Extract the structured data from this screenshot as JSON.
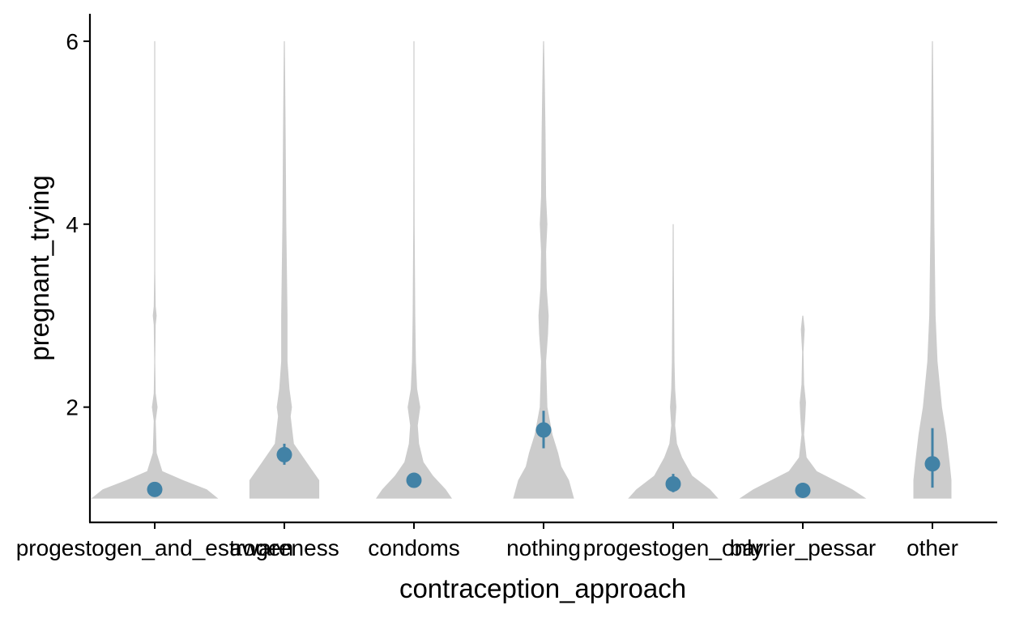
{
  "chart_data": {
    "type": "violin",
    "xlabel": "contraception_approach",
    "ylabel": "pregnant_trying",
    "categories": [
      "progestogen_and_estrogen",
      "awareness",
      "condoms",
      "nothing",
      "progestogen_only",
      "barrier_pessar",
      "other"
    ],
    "ylim": [
      0.74,
      6.3
    ],
    "yticks": [
      2,
      4,
      6
    ],
    "grid": false,
    "legend": "none",
    "colors": {
      "violin": "#cccccc",
      "point": "#4282a6",
      "axis": "#000000"
    },
    "summary": [
      {
        "category": "progestogen_and_estrogen",
        "mean": 1.1,
        "lower": 1.08,
        "upper": 1.12
      },
      {
        "category": "awareness",
        "mean": 1.48,
        "lower": 1.37,
        "upper": 1.6
      },
      {
        "category": "condoms",
        "mean": 1.2,
        "lower": 1.17,
        "upper": 1.23
      },
      {
        "category": "nothing",
        "mean": 1.75,
        "lower": 1.55,
        "upper": 1.96
      },
      {
        "category": "progestogen_only",
        "mean": 1.16,
        "lower": 1.07,
        "upper": 1.27
      },
      {
        "category": "barrier_pessar",
        "mean": 1.09,
        "lower": 1.03,
        "upper": 1.17
      },
      {
        "category": "other",
        "mean": 1.38,
        "lower": 1.12,
        "upper": 1.77
      }
    ],
    "density": [
      {
        "category": "progestogen_and_estrogen",
        "ymax": 6,
        "profile": [
          [
            1.0,
            1.0
          ],
          [
            1.1,
            0.82
          ],
          [
            1.2,
            0.45
          ],
          [
            1.3,
            0.12
          ],
          [
            1.5,
            0.03
          ],
          [
            1.85,
            0.015
          ],
          [
            2.0,
            0.045
          ],
          [
            2.15,
            0.015
          ],
          [
            2.5,
            0.006
          ],
          [
            2.9,
            0.015
          ],
          [
            3.0,
            0.03
          ],
          [
            3.1,
            0.015
          ],
          [
            3.5,
            0.004
          ],
          [
            4.0,
            0.003
          ],
          [
            5.0,
            0.002
          ],
          [
            6.0,
            0.0
          ]
        ]
      },
      {
        "category": "awareness",
        "ymax": 6,
        "profile": [
          [
            1.0,
            0.55
          ],
          [
            1.2,
            0.55
          ],
          [
            1.4,
            0.35
          ],
          [
            1.6,
            0.15
          ],
          [
            1.9,
            0.1
          ],
          [
            2.0,
            0.12
          ],
          [
            2.2,
            0.08
          ],
          [
            2.5,
            0.05
          ],
          [
            3.0,
            0.05
          ],
          [
            4.0,
            0.03
          ],
          [
            5.0,
            0.02
          ],
          [
            6.0,
            0.0
          ]
        ]
      },
      {
        "category": "condoms",
        "ymax": 6,
        "profile": [
          [
            1.0,
            0.6
          ],
          [
            1.1,
            0.5
          ],
          [
            1.25,
            0.3
          ],
          [
            1.4,
            0.15
          ],
          [
            1.6,
            0.08
          ],
          [
            1.8,
            0.06
          ],
          [
            2.0,
            0.1
          ],
          [
            2.2,
            0.05
          ],
          [
            2.5,
            0.03
          ],
          [
            3.0,
            0.02
          ],
          [
            3.5,
            0.015
          ],
          [
            4.0,
            0.01
          ],
          [
            5.0,
            0.005
          ],
          [
            6.0,
            0.0
          ]
        ]
      },
      {
        "category": "nothing",
        "ymax": 6,
        "profile": [
          [
            1.0,
            0.48
          ],
          [
            1.2,
            0.4
          ],
          [
            1.35,
            0.28
          ],
          [
            1.5,
            0.23
          ],
          [
            1.7,
            0.14
          ],
          [
            2.0,
            0.06
          ],
          [
            2.5,
            0.04
          ],
          [
            2.8,
            0.07
          ],
          [
            3.0,
            0.08
          ],
          [
            3.3,
            0.05
          ],
          [
            3.7,
            0.04
          ],
          [
            4.0,
            0.06
          ],
          [
            4.3,
            0.04
          ],
          [
            5.0,
            0.03
          ],
          [
            5.5,
            0.02
          ],
          [
            6.0,
            0.0
          ]
        ]
      },
      {
        "category": "progestogen_only",
        "ymax": 4,
        "profile": [
          [
            1.0,
            0.71
          ],
          [
            1.1,
            0.58
          ],
          [
            1.25,
            0.3
          ],
          [
            1.45,
            0.14
          ],
          [
            1.6,
            0.06
          ],
          [
            1.8,
            0.03
          ],
          [
            2.0,
            0.05
          ],
          [
            2.2,
            0.03
          ],
          [
            2.5,
            0.02
          ],
          [
            3.0,
            0.015
          ],
          [
            3.5,
            0.01
          ],
          [
            4.0,
            0.0
          ]
        ]
      },
      {
        "category": "barrier_pessar",
        "ymax": 3,
        "profile": [
          [
            1.0,
            1.0
          ],
          [
            1.1,
            0.78
          ],
          [
            1.2,
            0.5
          ],
          [
            1.3,
            0.22
          ],
          [
            1.45,
            0.06
          ],
          [
            1.7,
            0.02
          ],
          [
            1.9,
            0.04
          ],
          [
            2.05,
            0.05
          ],
          [
            2.25,
            0.02
          ],
          [
            2.6,
            0.01
          ],
          [
            2.85,
            0.03
          ],
          [
            3.0,
            0.0
          ]
        ]
      },
      {
        "category": "other",
        "ymax": 6,
        "profile": [
          [
            1.0,
            0.3
          ],
          [
            1.2,
            0.3
          ],
          [
            1.4,
            0.27
          ],
          [
            1.7,
            0.22
          ],
          [
            2.0,
            0.15
          ],
          [
            2.5,
            0.08
          ],
          [
            3.0,
            0.05
          ],
          [
            4.0,
            0.03
          ],
          [
            5.0,
            0.02
          ],
          [
            6.0,
            0.0
          ]
        ]
      }
    ]
  }
}
